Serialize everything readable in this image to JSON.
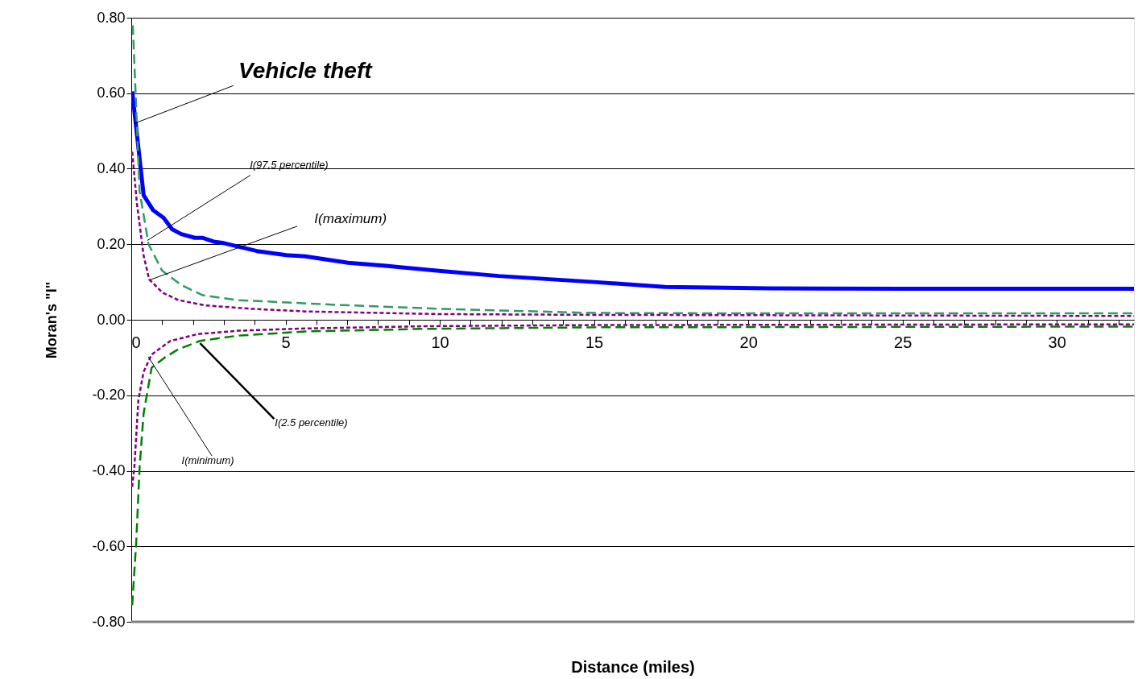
{
  "chart_data": {
    "type": "line",
    "xlabel": "Distance (miles)",
    "ylabel": "Moran's \"I\"",
    "xlim": [
      0,
      32.5
    ],
    "ylim": [
      -0.8,
      0.8
    ],
    "xticks": [
      0,
      {
        "value": 1,
        "label": null
      },
      {
        "value": 2,
        "label": null
      },
      {
        "value": 3,
        "label": null
      },
      {
        "value": 4,
        "label": null
      },
      5,
      {
        "value": 6,
        "label": null
      },
      {
        "value": 7,
        "label": null
      },
      {
        "value": 8,
        "label": null
      },
      {
        "value": 9,
        "label": null
      },
      10,
      {
        "value": 11,
        "label": null
      },
      {
        "value": 12,
        "label": null
      },
      {
        "value": 13,
        "label": null
      },
      {
        "value": 14,
        "label": null
      },
      15,
      {
        "value": 16,
        "label": null
      },
      {
        "value": 17,
        "label": null
      },
      {
        "value": 18,
        "label": null
      },
      {
        "value": 19,
        "label": null
      },
      20,
      {
        "value": 21,
        "label": null
      },
      {
        "value": 22,
        "label": null
      },
      {
        "value": 23,
        "label": null
      },
      {
        "value": 24,
        "label": null
      },
      25,
      {
        "value": 26,
        "label": null
      },
      {
        "value": 27,
        "label": null
      },
      {
        "value": 28,
        "label": null
      },
      {
        "value": 29,
        "label": null
      },
      30,
      {
        "value": 31,
        "label": null
      },
      {
        "value": 32,
        "label": null
      }
    ],
    "yticks": [
      {
        "value": 0.8,
        "label": "0.80"
      },
      {
        "value": 0.6,
        "label": "0.60"
      },
      {
        "value": 0.4,
        "label": "0.40"
      },
      {
        "value": 0.2,
        "label": "0.20"
      },
      {
        "value": 0,
        "label": "0.00"
      },
      {
        "value": -0.2,
        "label": "-0.20"
      },
      {
        "value": -0.4,
        "label": "-0.40"
      },
      {
        "value": -0.6,
        "label": "-0.60"
      },
      {
        "value": -0.8,
        "label": "-0.80"
      }
    ],
    "grid": "y",
    "marker": "none",
    "series": [
      {
        "color": "#0000ff",
        "line_style": "solid",
        "x": [
          0.03,
          0.4,
          0.71,
          1.05,
          1.32,
          1.62,
          2.06,
          2.32,
          2.67,
          3.0,
          4.07,
          5.03,
          5.64,
          7.03,
          8.25,
          9.9,
          11.9,
          15,
          17.3,
          20.7,
          25,
          32.5
        ],
        "values": [
          0.605,
          0.33,
          0.29,
          0.27,
          0.24,
          0.227,
          0.217,
          0.217,
          0.207,
          0.203,
          0.182,
          0.171,
          0.168,
          0.151,
          0.143,
          0.13,
          0.116,
          0.1,
          0.087,
          0.083,
          0.082,
          0.082
        ]
      },
      {
        "color": "#339966",
        "line_style": "dashed",
        "x": [
          0.05,
          0.27,
          0.56,
          1.0,
          1.62,
          2.32,
          3.46,
          4.76,
          6.5,
          10,
          15,
          20,
          32.5
        ],
        "values": [
          0.78,
          0.34,
          0.2,
          0.13,
          0.092,
          0.065,
          0.052,
          0.047,
          0.04,
          0.029,
          0.018,
          0.017,
          0.017
        ]
      },
      {
        "color": "#800080",
        "line_style": "dotted",
        "x": [
          0.03,
          0.18,
          0.4,
          0.58,
          1.01,
          1.53,
          2.41,
          3.9,
          5.64,
          10,
          15,
          32.5
        ],
        "values": [
          0.445,
          0.31,
          0.17,
          0.107,
          0.072,
          0.052,
          0.038,
          0.029,
          0.022,
          0.015,
          0.013,
          0.01
        ]
      },
      {
        "color": "#800080",
        "line_style": "dotted",
        "x": [
          0.03,
          0.1,
          0.23,
          0.4,
          0.66,
          1.27,
          2.15,
          3.46,
          5.64,
          9.56,
          15,
          32.5
        ],
        "values": [
          -0.443,
          -0.39,
          -0.213,
          -0.138,
          -0.092,
          -0.056,
          -0.038,
          -0.029,
          -0.023,
          -0.017,
          -0.014,
          -0.012
        ]
      },
      {
        "color": "#008000",
        "line_style": "dashed",
        "x": [
          0.03,
          0.16,
          0.27,
          0.4,
          0.66,
          1.1,
          1.53,
          2.23,
          3.46,
          5.64,
          9.56,
          15,
          32.5
        ],
        "values": [
          -0.756,
          -0.59,
          -0.39,
          -0.248,
          -0.127,
          -0.099,
          -0.078,
          -0.056,
          -0.042,
          -0.031,
          -0.024,
          -0.02,
          -0.018
        ]
      }
    ],
    "annotations": [
      {
        "text": "Vehicle theft",
        "x": 0.1,
        "y": 0.52
      },
      {
        "text": "I(97.5 percentile)",
        "x": 0.52,
        "y": 0.21
      },
      {
        "text": "I(maximum)",
        "x": 0.58,
        "y": 0.105
      },
      {
        "text": "I(2.5 percentile)",
        "x": 2.23,
        "y": -0.062
      },
      {
        "text": "I(minimum)",
        "x": 0.55,
        "y": -0.098
      }
    ]
  }
}
